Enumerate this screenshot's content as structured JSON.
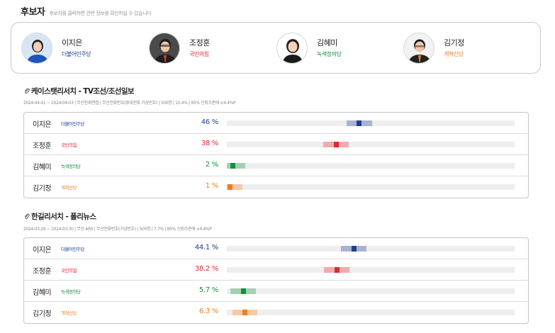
{
  "header": {
    "title": "후보자",
    "description": "후보자를 클릭하면 관련 정보를 확인하실 수 있습니다"
  },
  "candidates": [
    {
      "name": "이지은",
      "party": "더불어민주당",
      "party_color": "#1b3f93"
    },
    {
      "name": "조정훈",
      "party": "국민의힘",
      "party_color": "#e52733"
    },
    {
      "name": "김혜미",
      "party": "녹색정의당",
      "party_color": "#12903a"
    },
    {
      "name": "김기정",
      "party": "개혁신당",
      "party_color": "#ef7d22"
    }
  ],
  "polls": [
    {
      "title": "케이스탯리서치 - TV조선/조선일보",
      "meta": "2024-04-01 ~ 2024-04-03 | 무선전화면접 | 무선전화번호(휴대전화 가상번호) | 500명 | 10.4% | 95% 신뢰수준에 ±4.4%P",
      "results": [
        {
          "name": "이지은",
          "party": "더불어민주당",
          "pct_label": "46 %",
          "value": 46,
          "color": "#1b3f93",
          "band": "#a9b2d4"
        },
        {
          "name": "조정훈",
          "party": "국민의힘",
          "pct_label": "38 %",
          "value": 38,
          "color": "#e52733",
          "band": "#f3a9ae"
        },
        {
          "name": "김혜미",
          "party": "녹색정의당",
          "pct_label": "2 %",
          "value": 2,
          "color": "#12903a",
          "band": "#a3d2b0"
        },
        {
          "name": "김기정",
          "party": "개혁신당",
          "pct_label": "1 %",
          "value": 1,
          "color": "#ef7d22",
          "band": "#f8c9a4"
        }
      ]
    },
    {
      "title": "한길리서치 - 폴리뉴스",
      "meta": "2024-03-29 ~ 2024-03-30 | 무선 ARS | 무선전화번호(가상번호) | 505명 | 7.7% | 95% 신뢰수준에 ±4.4%P",
      "results": [
        {
          "name": "이지은",
          "party": "더불어민주당",
          "pct_label": "44.1 %",
          "value": 44.1,
          "color": "#1b3f93",
          "band": "#a9b2d4"
        },
        {
          "name": "조정훈",
          "party": "국민의힘",
          "pct_label": "38.2 %",
          "value": 38.2,
          "color": "#e52733",
          "band": "#f3a9ae"
        },
        {
          "name": "김혜미",
          "party": "녹색정의당",
          "pct_label": "5.7 %",
          "value": 5.7,
          "color": "#12903a",
          "band": "#a3d2b0"
        },
        {
          "name": "김기정",
          "party": "개혁신당",
          "pct_label": "6.3 %",
          "value": 6.3,
          "color": "#ef7d22",
          "band": "#f8c9a4"
        }
      ]
    }
  ]
}
